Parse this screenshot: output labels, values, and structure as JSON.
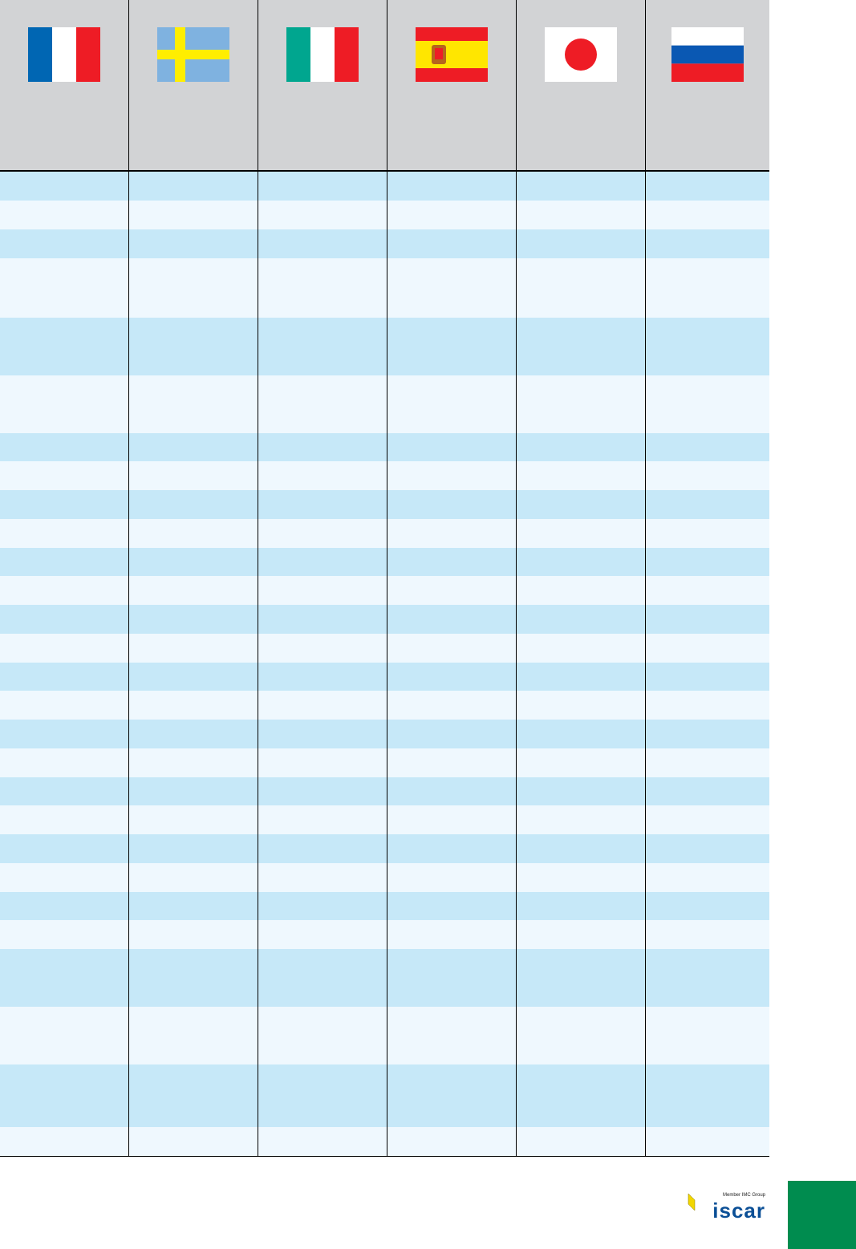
{
  "header": {
    "flags": [
      {
        "icon": "france-flag-icon",
        "colors": [
          "#0066b3",
          "#ffffff",
          "#ee1c25"
        ]
      },
      {
        "icon": "sweden-flag-icon",
        "colors": [
          "#7fb2e0",
          "#ffee00"
        ]
      },
      {
        "icon": "italy-flag-icon",
        "colors": [
          "#00a68f",
          "#ffffff",
          "#ee1c25"
        ]
      },
      {
        "icon": "spain-flag-icon",
        "colors": [
          "#ee1c25",
          "#ffe600"
        ]
      },
      {
        "icon": "japan-flag-icon",
        "colors": [
          "#ffffff",
          "#ee1c25"
        ]
      },
      {
        "icon": "russia-flag-icon",
        "colors": [
          "#ffffff",
          "#0a58b3",
          "#ee1c25"
        ]
      }
    ]
  },
  "rows_count": 28,
  "colors": {
    "row_dark": "#c6e8f8",
    "row_light": "#eff8fe",
    "header": "#d2d3d5",
    "tab": "#008c4f",
    "logo_blue": "#0b4f96",
    "logo_yellow": "#f2d600"
  },
  "logo": {
    "tagline": "Member IMC Group",
    "brand": "iscar"
  }
}
